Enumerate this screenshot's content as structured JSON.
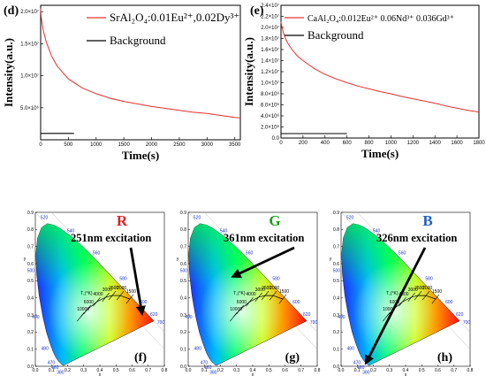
{
  "chart_data": [
    {
      "type": "line",
      "panel_label": "(d)",
      "xlabel": "Time(s)",
      "ylabel": "Intensity(a.u.)",
      "xlim": [
        0,
        3600
      ],
      "ylim": [
        0,
        21000000
      ],
      "x_ticks": [
        0,
        500,
        1000,
        1500,
        2000,
        2500,
        3000,
        3500
      ],
      "y_ticks": [
        {
          "value": 5000000,
          "label": "5.0×10⁶"
        },
        {
          "value": 10000000,
          "label": "1.0×10⁷"
        },
        {
          "value": 15000000,
          "label": "1.5×10⁷"
        },
        {
          "value": 20000000,
          "label": "2.0×10⁷"
        }
      ],
      "legend_position": "top-right",
      "series": [
        {
          "name": "SrAl₂O₄:0.01Eu²⁺,0.02Dy³⁺",
          "color": "#e83030",
          "x": [
            0,
            10,
            25,
            50,
            100,
            200,
            300,
            500,
            750,
            1000,
            1250,
            1500,
            1750,
            2000,
            2250,
            2500,
            2750,
            3000,
            3250,
            3500,
            3600
          ],
          "y": [
            20500000,
            19200000,
            18200000,
            17000000,
            15300000,
            13000000,
            11500000,
            9500000,
            8100000,
            7200000,
            6500000,
            6000000,
            5600000,
            5200000,
            4900000,
            4600000,
            4300000,
            4100000,
            3800000,
            3500000,
            3400000
          ]
        },
        {
          "name": "Background",
          "color": "#000000",
          "x": [
            0,
            600
          ],
          "y": [
            1000000,
            1000000
          ]
        }
      ]
    },
    {
      "type": "line",
      "panel_label": "(e)",
      "xlabel": "Time(s)",
      "ylabel": "Intensity(a.u.)",
      "xlim": [
        0,
        1800
      ],
      "ylim": [
        0,
        24000000
      ],
      "x_ticks": [
        0,
        200,
        400,
        600,
        800,
        1000,
        1200,
        1400,
        1600,
        1800
      ],
      "y_ticks": [
        {
          "value": 0,
          "label": "0.0"
        },
        {
          "value": 2000000,
          "label": "2.0×10⁶"
        },
        {
          "value": 4000000,
          "label": "4.0×10⁶"
        },
        {
          "value": 6000000,
          "label": "6.0×10⁶"
        },
        {
          "value": 8000000,
          "label": "8.0×10⁶"
        },
        {
          "value": 10000000,
          "label": "1.0×10⁷"
        },
        {
          "value": 12000000,
          "label": "1.2×10⁷"
        },
        {
          "value": 14000000,
          "label": "1.4×10⁷"
        },
        {
          "value": 16000000,
          "label": "1.6×10⁷"
        },
        {
          "value": 18000000,
          "label": "1.8×10⁷"
        },
        {
          "value": 20000000,
          "label": "2.0×10⁷"
        },
        {
          "value": 22000000,
          "label": "2.2×10⁷"
        },
        {
          "value": 24000000,
          "label": "2.4×10⁷"
        }
      ],
      "legend_position": "top-left",
      "series": [
        {
          "name": "CaAl₂O₄:0.012Eu²⁺ 0.06Nd³⁺ 0.036Gd³⁺",
          "color": "#e83030",
          "x": [
            0,
            5,
            10,
            20,
            40,
            60,
            100,
            150,
            200,
            300,
            400,
            500,
            600,
            700,
            800,
            900,
            1000,
            1100,
            1200,
            1300,
            1400,
            1500,
            1600,
            1700,
            1800
          ],
          "y": [
            21000000,
            20500000,
            20000000,
            19200000,
            18000000,
            17200000,
            16000000,
            14800000,
            14000000,
            12600000,
            11500000,
            10700000,
            10000000,
            9400000,
            8900000,
            8400000,
            8000000,
            7500000,
            7100000,
            6700000,
            6300000,
            5800000,
            5400000,
            5000000,
            4700000
          ]
        },
        {
          "name": "Background",
          "color": "#000000",
          "x": [
            0,
            600
          ],
          "y": [
            800000,
            800000
          ]
        }
      ]
    },
    {
      "type": "scatter",
      "panel_label": "(f)",
      "subtitle": "R",
      "subtitle_color": "#e02020",
      "annotation": "251nm excitation",
      "xlabel": "x",
      "ylabel": "y",
      "point": {
        "x": 0.66,
        "y": 0.32
      }
    },
    {
      "type": "scatter",
      "panel_label": "(g)",
      "subtitle": "G",
      "subtitle_color": "#18a018",
      "annotation": "361nm excitation",
      "xlabel": "x",
      "ylabel": "y",
      "point": {
        "x": 0.29,
        "y": 0.53
      }
    },
    {
      "type": "scatter",
      "panel_label": "(h)",
      "subtitle": "B",
      "subtitle_color": "#2060c8",
      "annotation": "326nm excitation",
      "xlabel": "x",
      "ylabel": "y",
      "point": {
        "x": 0.16,
        "y": 0.03
      }
    }
  ],
  "cie_axes": {
    "x_ticks": [
      "0.0",
      "0.1",
      "0.2",
      "0.3",
      "0.4",
      "0.5",
      "0.6",
      "0.7",
      "0.8"
    ],
    "y_ticks": [
      "0.0",
      "0.1",
      "0.2",
      "0.3",
      "0.4",
      "0.5",
      "0.6",
      "0.7",
      "0.8",
      "0.9"
    ],
    "wavelength_labels": [
      "380",
      "460",
      "470",
      "480",
      "490",
      "500",
      "520",
      "540",
      "560",
      "580",
      "600",
      "620",
      "700"
    ],
    "planckian_label": "T꜀(°K)",
    "cct_labels": [
      "10000",
      "6000",
      "4000",
      "3000",
      "2500",
      "2000",
      "1500"
    ]
  }
}
